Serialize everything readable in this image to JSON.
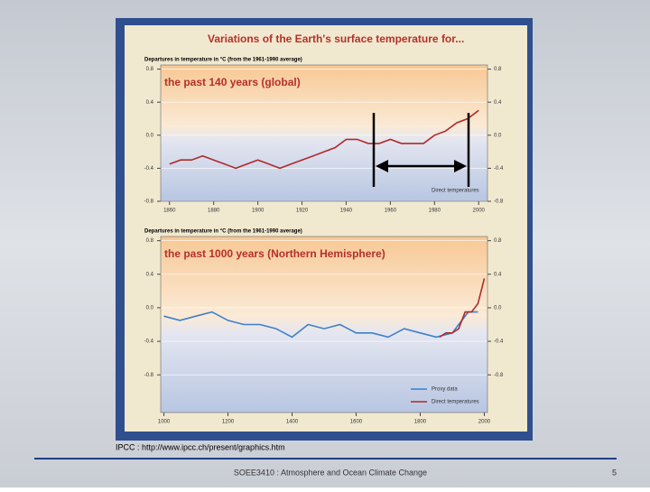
{
  "slide": {
    "panel_title": "Variations of the Earth's surface temperature for...",
    "source": "IPCC : http://www.ipcc.ch/present/graphics.htm",
    "footer": "SOEE3410 : Atmosphere and Ocean Climate Change",
    "page_number": "5"
  },
  "chart_data": [
    {
      "type": "line",
      "title": "the past 140 years (global)",
      "y_label": "Departures in temperature in °C (from the 1961-1990 average)",
      "xlim": [
        1856,
        2004
      ],
      "xticks": [
        1860,
        1880,
        1900,
        1920,
        1940,
        1960,
        1980,
        2000
      ],
      "ylim": [
        -0.8,
        0.85
      ],
      "yticks": [
        0.8,
        0.4,
        {
          "value": 0,
          "label": "0.0"
        },
        -0.4,
        -0.8
      ],
      "series": [
        {
          "name": "Direct temperatures",
          "color": "#b02a2a",
          "x": [
            1860,
            1865,
            1870,
            1875,
            1880,
            1885,
            1890,
            1895,
            1900,
            1905,
            1910,
            1915,
            1920,
            1925,
            1930,
            1935,
            1940,
            1945,
            1950,
            1955,
            1960,
            1965,
            1970,
            1975,
            1980,
            1985,
            1990,
            1995,
            2000
          ],
          "values": [
            -0.35,
            -0.3,
            -0.3,
            -0.25,
            -0.3,
            -0.35,
            -0.4,
            -0.35,
            -0.3,
            -0.35,
            -0.4,
            -0.35,
            -0.3,
            -0.25,
            -0.2,
            -0.15,
            -0.05,
            -0.05,
            -0.1,
            -0.1,
            -0.05,
            -0.1,
            -0.1,
            -0.1,
            0.0,
            0.05,
            0.15,
            0.2,
            0.3
          ]
        }
      ]
    },
    {
      "type": "line",
      "title": "the past 1000 years (Northern Hemisphere)",
      "y_label": "Departures in temperature in °C (from the 1961-1990 average)",
      "xlim": [
        990,
        2010
      ],
      "xticks": [
        1000,
        1200,
        1400,
        1600,
        1800,
        2000
      ],
      "ylim": [
        -1.25,
        0.85
      ],
      "yticks": [
        0.8,
        0.4,
        {
          "value": 0,
          "label": "0.0"
        },
        -0.4,
        -0.8
      ],
      "series": [
        {
          "name": "Proxy data",
          "color": "#3f7fc8",
          "x": [
            1000,
            1050,
            1100,
            1150,
            1200,
            1250,
            1300,
            1350,
            1400,
            1450,
            1500,
            1550,
            1600,
            1650,
            1700,
            1750,
            1800,
            1850,
            1900,
            1950,
            1980
          ],
          "values": [
            -0.1,
            -0.15,
            -0.1,
            -0.05,
            -0.15,
            -0.2,
            -0.2,
            -0.25,
            -0.35,
            -0.2,
            -0.25,
            -0.2,
            -0.3,
            -0.3,
            -0.35,
            -0.25,
            -0.3,
            -0.35,
            -0.3,
            -0.05,
            -0.05
          ]
        },
        {
          "name": "Direct temperatures",
          "color": "#b02a2a",
          "x": [
            1860,
            1880,
            1900,
            1920,
            1940,
            1960,
            1980,
            2000
          ],
          "values": [
            -0.35,
            -0.3,
            -0.3,
            -0.25,
            -0.05,
            -0.05,
            0.05,
            0.35
          ]
        }
      ]
    }
  ]
}
